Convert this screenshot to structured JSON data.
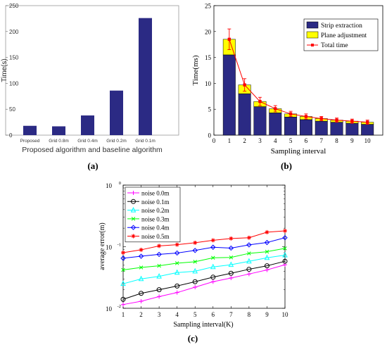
{
  "panels": {
    "a": {
      "caption": "(a)"
    },
    "b": {
      "caption": "(b)"
    },
    "c": {
      "caption": "(c)"
    }
  },
  "chart_data": [
    {
      "id": "a",
      "type": "bar",
      "title": "",
      "xlabel": "Proposed algorithm and baseline algorithm",
      "ylabel": "Time(s)",
      "categories": [
        "Proposed",
        "Grid 0.8m",
        "Grid 0.4m",
        "Grid 0.2m",
        "Grid 0.1m"
      ],
      "values": [
        18,
        17,
        38,
        86,
        226
      ],
      "ylim": [
        0,
        250
      ],
      "yticks": [
        0,
        50,
        100,
        150,
        200,
        250
      ],
      "bar_color": "#2b2a84",
      "grid": false
    },
    {
      "id": "b",
      "type": "bar",
      "title": "",
      "xlabel": "Sampling interval",
      "ylabel": "Time(ms)",
      "categories": [
        1,
        2,
        3,
        4,
        5,
        6,
        7,
        8,
        9,
        10
      ],
      "xlim": [
        0,
        11
      ],
      "xticks": [
        0,
        1,
        2,
        3,
        4,
        5,
        6,
        7,
        8,
        9,
        10
      ],
      "ylim": [
        0,
        25
      ],
      "yticks": [
        0,
        5,
        10,
        15,
        20,
        25
      ],
      "series": [
        {
          "name": "Strip extraction",
          "kind": "stacked-bar",
          "color": "#2b2a84",
          "values": [
            15.5,
            8.0,
            5.5,
            4.3,
            3.5,
            3.0,
            2.7,
            2.5,
            2.3,
            2.1
          ]
        },
        {
          "name": "Plane adjustment",
          "kind": "stacked-bar",
          "color": "#ffff00",
          "values": [
            3.0,
            1.7,
            1.0,
            0.8,
            0.6,
            0.6,
            0.5,
            0.4,
            0.4,
            0.4
          ]
        },
        {
          "name": "Total time",
          "kind": "line",
          "color": "#ff0000",
          "values": [
            18.5,
            9.7,
            6.5,
            5.1,
            4.1,
            3.6,
            3.2,
            2.9,
            2.7,
            2.5
          ],
          "errors": [
            2.0,
            1.2,
            0.8,
            0.6,
            0.5,
            0.5,
            0.4,
            0.4,
            0.4,
            0.4
          ]
        }
      ],
      "legend": "top-right",
      "grid": false
    },
    {
      "id": "c",
      "type": "line",
      "title": "",
      "xlabel": "Sampling interval(K)",
      "ylabel": "average error(m)",
      "x": [
        1,
        2,
        3,
        4,
        5,
        6,
        7,
        8,
        9,
        10
      ],
      "xlim": [
        1,
        10
      ],
      "ylim": [
        0.01,
        1
      ],
      "yscale": "log",
      "ytick_labels": [
        "10^-2",
        "10^-1",
        "10^0"
      ],
      "series": [
        {
          "name": "noise 0.0m",
          "color": "#ff00ff",
          "marker": "plus",
          "values": [
            0.0115,
            0.013,
            0.0155,
            0.018,
            0.022,
            0.027,
            0.031,
            0.036,
            0.042,
            0.051
          ]
        },
        {
          "name": "noise 0.1m",
          "color": "#000000",
          "marker": "circle",
          "values": [
            0.014,
            0.0175,
            0.02,
            0.023,
            0.027,
            0.032,
            0.037,
            0.043,
            0.049,
            0.058
          ]
        },
        {
          "name": "noise 0.2m",
          "color": "#00ffff",
          "marker": "triangle",
          "values": [
            0.025,
            0.03,
            0.033,
            0.038,
            0.04,
            0.047,
            0.051,
            0.058,
            0.066,
            0.073
          ]
        },
        {
          "name": "noise 0.3m",
          "color": "#00ff00",
          "marker": "x",
          "values": [
            0.042,
            0.046,
            0.049,
            0.054,
            0.057,
            0.066,
            0.067,
            0.078,
            0.083,
            0.094
          ]
        },
        {
          "name": "noise 0.4m",
          "color": "#0000ff",
          "marker": "diamond",
          "values": [
            0.065,
            0.07,
            0.075,
            0.079,
            0.087,
            0.098,
            0.095,
            0.107,
            0.117,
            0.14
          ]
        },
        {
          "name": "noise 0.5m",
          "color": "#ff0000",
          "marker": "asterisk",
          "values": [
            0.08,
            0.089,
            0.103,
            0.108,
            0.116,
            0.127,
            0.136,
            0.14,
            0.172,
            0.181
          ]
        }
      ],
      "legend": "top-left",
      "grid": false
    }
  ]
}
